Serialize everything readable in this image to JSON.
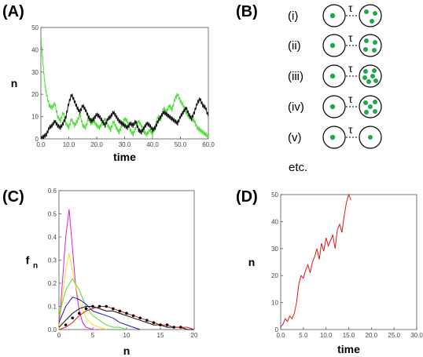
{
  "panels": {
    "A": "(A)",
    "B": "(B)",
    "C": "(C)",
    "D": "(D)"
  },
  "schematic": {
    "rows": [
      {
        "label": "(i)",
        "mother_dots": 1,
        "daughter_dots": 3
      },
      {
        "label": "(ii)",
        "mother_dots": 1,
        "daughter_dots": 4
      },
      {
        "label": "(iii)",
        "mother_dots": 1,
        "daughter_dots": 6
      },
      {
        "label": "(iv)",
        "mother_dots": 1,
        "daughter_dots": 5
      },
      {
        "label": "(v)",
        "mother_dots": 1,
        "daughter_dots": 1
      }
    ],
    "tau": "τ",
    "etc": "etc.",
    "dot_color": "#1faa4a"
  },
  "chart_data": [
    {
      "id": "A",
      "type": "line",
      "xlabel": "time",
      "ylabel": "n",
      "xlim": [
        0,
        60
      ],
      "ylim": [
        0,
        50
      ],
      "xticks": [
        "0.0",
        "10.0",
        "20.0",
        "30.0",
        "40.0",
        "50.0",
        "60.0"
      ],
      "yticks": [
        "0",
        "10",
        "20",
        "30",
        "40",
        "50"
      ],
      "grid": false,
      "series": [
        {
          "color": "#4fdc3a",
          "x": [
            0,
            0.5,
            1,
            1.5,
            2,
            3,
            4,
            5,
            6,
            7,
            8,
            9,
            10,
            11,
            12,
            13,
            14,
            15,
            16,
            17,
            18,
            19,
            20,
            21,
            22,
            23,
            24,
            25,
            26,
            27,
            28,
            29,
            30,
            31,
            32,
            33,
            34,
            35,
            36,
            37,
            38,
            39,
            40,
            41,
            42,
            43,
            44,
            45,
            46,
            47,
            48,
            49,
            50,
            51,
            52,
            53,
            54,
            55,
            56,
            57,
            58,
            59,
            60
          ],
          "y": [
            45,
            38,
            30,
            24,
            20,
            15,
            14,
            16,
            10,
            8,
            12,
            7,
            5,
            9,
            6,
            8,
            11,
            6,
            5,
            9,
            7,
            8,
            6,
            5,
            7,
            9,
            6,
            4,
            8,
            5,
            3,
            6,
            9,
            8,
            4,
            2,
            5,
            8,
            6,
            3,
            2,
            4,
            2,
            6,
            10,
            9,
            14,
            12,
            15,
            13,
            18,
            20,
            17,
            15,
            12,
            10,
            9,
            8,
            5,
            4,
            3,
            2,
            1
          ]
        },
        {
          "color": "#111111",
          "x": [
            0,
            1,
            2,
            3,
            4,
            5,
            6,
            7,
            8,
            9,
            10,
            11,
            12,
            13,
            14,
            15,
            16,
            17,
            18,
            19,
            20,
            21,
            22,
            23,
            24,
            25,
            26,
            27,
            28,
            29,
            30,
            31,
            32,
            33,
            34,
            35,
            36,
            37,
            38,
            39,
            40,
            41,
            42,
            43,
            44,
            45,
            46,
            47,
            48,
            49,
            50,
            51,
            52,
            53,
            54,
            55,
            56,
            57,
            58,
            59,
            60
          ],
          "y": [
            0,
            1,
            2,
            5,
            6,
            8,
            6,
            5,
            7,
            10,
            16,
            20,
            17,
            14,
            12,
            15,
            13,
            10,
            8,
            9,
            11,
            10,
            8,
            6,
            9,
            10,
            12,
            10,
            8,
            7,
            6,
            5,
            7,
            6,
            8,
            4,
            3,
            5,
            7,
            6,
            4,
            5,
            8,
            10,
            12,
            11,
            10,
            9,
            8,
            7,
            10,
            12,
            14,
            11,
            9,
            12,
            16,
            18,
            15,
            14,
            10
          ]
        }
      ]
    },
    {
      "id": "C",
      "type": "line",
      "xlabel": "n",
      "ylabel": "f",
      "ylabel_subscript": "n",
      "xlim": [
        0,
        20
      ],
      "ylim": [
        0,
        0.6
      ],
      "xticks": [
        "0",
        "5",
        "10",
        "15",
        "20"
      ],
      "yticks": [
        "0.0",
        "0.1",
        "0.2",
        "0.3",
        "0.4",
        "0.5",
        "0.6"
      ],
      "grid": false,
      "series": [
        {
          "color": "#d81fd1",
          "x": [
            0,
            0.5,
            1,
            1.5,
            2,
            2.5,
            3,
            3.5,
            4,
            5,
            6
          ],
          "y": [
            0,
            0.2,
            0.4,
            0.52,
            0.35,
            0.18,
            0.08,
            0.03,
            0.01,
            0,
            0
          ]
        },
        {
          "color": "#f0e020",
          "x": [
            0,
            0.5,
            1,
            1.5,
            2,
            3,
            4,
            5,
            6,
            7
          ],
          "y": [
            0,
            0.14,
            0.26,
            0.33,
            0.25,
            0.12,
            0.05,
            0.02,
            0.01,
            0
          ]
        },
        {
          "color": "#4fdc3a",
          "x": [
            0,
            1,
            2,
            3,
            4,
            5,
            6,
            7,
            8,
            9,
            10
          ],
          "y": [
            0.06,
            0.17,
            0.22,
            0.17,
            0.1,
            0.06,
            0.04,
            0.02,
            0.01,
            0.01,
            0
          ]
        },
        {
          "color": "#1a1ad0",
          "x": [
            0,
            1,
            2,
            3,
            4,
            5,
            6,
            7,
            8,
            9,
            10,
            11,
            12
          ],
          "y": [
            0.03,
            0.1,
            0.14,
            0.13,
            0.11,
            0.08,
            0.07,
            0.06,
            0.05,
            0.03,
            0.02,
            0.01,
            0
          ]
        },
        {
          "color": "#0a0a0a",
          "x": [
            0,
            1,
            2,
            3,
            4,
            5,
            6,
            7,
            8,
            9,
            10,
            11,
            12,
            13,
            14,
            15,
            16,
            17,
            18,
            19,
            20
          ],
          "y": [
            0.01,
            0.04,
            0.07,
            0.09,
            0.1,
            0.1,
            0.09,
            0.08,
            0.08,
            0.07,
            0.06,
            0.05,
            0.04,
            0.03,
            0.02,
            0.02,
            0.01,
            0.01,
            0.01,
            0,
            0
          ]
        },
        {
          "color": "#e01818",
          "x": [
            0,
            1,
            2,
            3,
            4,
            5,
            6,
            7,
            8,
            9,
            10,
            11,
            12,
            13,
            14,
            15,
            16,
            17,
            18,
            19,
            20
          ],
          "y": [
            0,
            0.01,
            0.03,
            0.06,
            0.08,
            0.09,
            0.1,
            0.1,
            0.09,
            0.08,
            0.07,
            0.06,
            0.05,
            0.04,
            0.03,
            0.02,
            0.02,
            0.01,
            0.01,
            0.01,
            0
          ]
        }
      ],
      "points": {
        "x": [
          1,
          2,
          3,
          4,
          5,
          6,
          7,
          8,
          9,
          10,
          11,
          12,
          13,
          14,
          15,
          16,
          17,
          18
        ],
        "y": [
          0.02,
          0.05,
          0.07,
          0.09,
          0.1,
          0.1,
          0.1,
          0.09,
          0.08,
          0.07,
          0.06,
          0.05,
          0.04,
          0.03,
          0.02,
          0.02,
          0.01,
          0.01
        ]
      }
    },
    {
      "id": "D",
      "type": "line",
      "xlabel": "time",
      "ylabel": "n",
      "xlim": [
        0,
        30
      ],
      "ylim": [
        0,
        50
      ],
      "xticks": [
        "0.0",
        "5.0",
        "10.0",
        "15.0",
        "20.0",
        "25.0",
        "30.0"
      ],
      "yticks": [
        "0",
        "10",
        "20",
        "30",
        "40",
        "50"
      ],
      "grid": false,
      "series": [
        {
          "color": "#e01818",
          "x": [
            0,
            0.5,
            1,
            1.5,
            2,
            2.5,
            3,
            3.5,
            4,
            4.5,
            5,
            5.5,
            6,
            6.5,
            7,
            7.5,
            8,
            8.5,
            9,
            9.5,
            10,
            10.5,
            11,
            11.5,
            12,
            12.5,
            13,
            13.5,
            14,
            14.5,
            15,
            15.5
          ],
          "y": [
            1,
            2,
            4,
            3,
            5,
            4,
            6,
            10,
            17,
            20,
            19,
            22,
            24,
            21,
            25,
            27,
            30,
            26,
            32,
            29,
            34,
            31,
            33,
            35,
            30,
            37,
            39,
            36,
            42,
            47,
            50,
            48
          ]
        }
      ]
    }
  ]
}
